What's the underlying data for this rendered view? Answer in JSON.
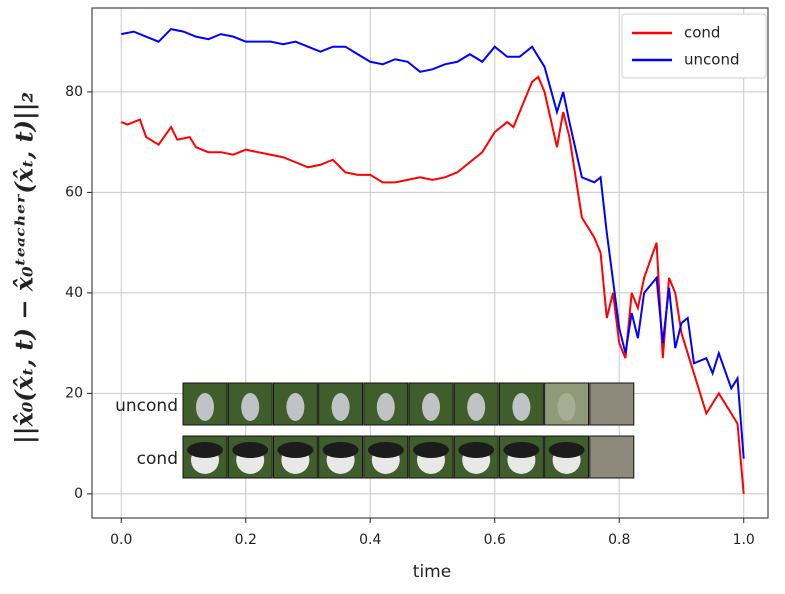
{
  "chart_data": {
    "type": "line",
    "xlabel": "time",
    "ylabel": "||x̂₀(x̂ₜ, t) − x̂₀ᵗᵉᵃᶜʰᵉʳ(x̂ₜ, t)||₂",
    "xlim": [
      -0.047,
      1.039
    ],
    "ylim": [
      -4.8,
      96.7
    ],
    "xticks": [
      {
        "value": 0,
        "label": "0.0"
      },
      0.2,
      0.4,
      0.6,
      0.8,
      {
        "value": 1,
        "label": "1.0"
      }
    ],
    "yticks": [
      0,
      20,
      40,
      60,
      80
    ],
    "grid": true,
    "legend": "upper right",
    "series": [
      {
        "name": "cond",
        "color": "#ff0000",
        "x": [
          0.0,
          0.01,
          0.03,
          0.04,
          0.06,
          0.08,
          0.09,
          0.11,
          0.12,
          0.14,
          0.16,
          0.18,
          0.2,
          0.22,
          0.24,
          0.26,
          0.28,
          0.3,
          0.32,
          0.34,
          0.36,
          0.38,
          0.4,
          0.42,
          0.44,
          0.46,
          0.48,
          0.5,
          0.52,
          0.54,
          0.56,
          0.58,
          0.6,
          0.62,
          0.63,
          0.64,
          0.66,
          0.67,
          0.68,
          0.7,
          0.71,
          0.72,
          0.74,
          0.76,
          0.77,
          0.78,
          0.79,
          0.8,
          0.81,
          0.82,
          0.83,
          0.84,
          0.86,
          0.87,
          0.88,
          0.89,
          0.9,
          0.92,
          0.94,
          0.96,
          0.97,
          0.98,
          0.99,
          1.0
        ],
        "values": [
          74,
          73.5,
          74.5,
          71,
          69.5,
          73,
          70.5,
          71,
          69,
          68,
          68,
          67.5,
          68.5,
          68,
          67.5,
          67,
          66,
          65,
          65.5,
          66.5,
          64,
          63.5,
          63.5,
          62,
          62,
          62.5,
          63,
          62.5,
          63,
          64,
          66,
          68,
          72,
          74,
          73,
          76,
          82,
          83,
          80,
          69,
          76,
          71,
          55,
          51,
          48,
          35,
          40,
          30,
          27,
          40,
          37,
          43,
          50,
          27,
          43,
          40,
          32,
          24,
          16,
          20,
          18,
          16,
          14,
          0
        ]
      },
      {
        "name": "uncond",
        "color": "#0000ff",
        "x": [
          0.0,
          0.02,
          0.04,
          0.06,
          0.08,
          0.1,
          0.12,
          0.14,
          0.16,
          0.18,
          0.2,
          0.22,
          0.24,
          0.26,
          0.28,
          0.3,
          0.32,
          0.34,
          0.36,
          0.38,
          0.4,
          0.42,
          0.44,
          0.46,
          0.48,
          0.5,
          0.52,
          0.54,
          0.56,
          0.58,
          0.6,
          0.62,
          0.64,
          0.66,
          0.68,
          0.7,
          0.71,
          0.72,
          0.74,
          0.76,
          0.77,
          0.78,
          0.8,
          0.81,
          0.82,
          0.83,
          0.84,
          0.86,
          0.87,
          0.88,
          0.89,
          0.9,
          0.91,
          0.92,
          0.94,
          0.95,
          0.96,
          0.98,
          0.99,
          1.0
        ],
        "values": [
          91.5,
          92,
          91,
          90,
          92.5,
          92,
          91,
          90.5,
          91.5,
          91,
          90,
          90,
          90,
          89.5,
          90,
          89,
          88,
          89,
          89,
          87.5,
          86,
          85.5,
          86.5,
          86,
          84,
          84.5,
          85.5,
          86,
          87.5,
          86,
          89,
          87,
          87,
          89,
          85,
          76,
          80,
          74,
          63,
          62,
          63,
          52,
          33,
          28,
          36,
          31,
          40,
          43,
          30,
          41,
          29,
          34,
          35,
          26,
          27,
          24,
          28,
          21,
          23,
          7
        ]
      }
    ],
    "inset": {
      "row_labels": [
        "uncond",
        "cond"
      ]
    }
  }
}
